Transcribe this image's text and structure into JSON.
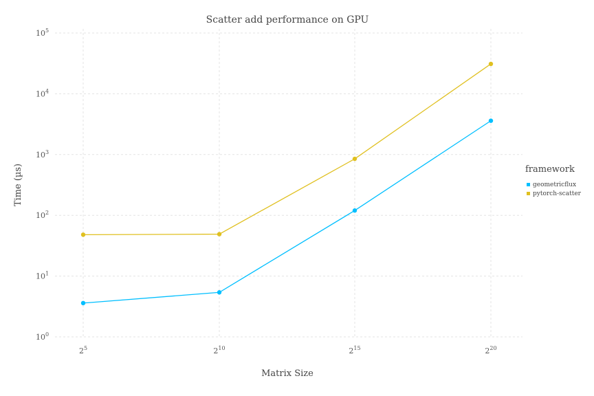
{
  "chart_data": {
    "type": "line",
    "title": "Scatter add performance on GPU",
    "xlabel": "Matrix Size",
    "ylabel": "Time (µs)",
    "x_scale": "log2",
    "y_scale": "log10",
    "x": [
      32,
      1024,
      32768,
      1048576
    ],
    "x_ticks": [
      {
        "base": "2",
        "exp": "5"
      },
      {
        "base": "2",
        "exp": "10"
      },
      {
        "base": "2",
        "exp": "15"
      },
      {
        "base": "2",
        "exp": "20"
      }
    ],
    "y_ticks": [
      {
        "base": "10",
        "exp": "0"
      },
      {
        "base": "10",
        "exp": "1"
      },
      {
        "base": "10",
        "exp": "2"
      },
      {
        "base": "10",
        "exp": "3"
      },
      {
        "base": "10",
        "exp": "4"
      },
      {
        "base": "10",
        "exp": "5"
      }
    ],
    "ylim": [
      1,
      100000
    ],
    "grid": true,
    "legend": {
      "title": "framework",
      "position": "right"
    },
    "series": [
      {
        "name": "geometricflux",
        "color": "#00bfff",
        "values": [
          3.6,
          5.4,
          120,
          3600
        ]
      },
      {
        "name": "pytorch-scatter",
        "color": "#e0c020",
        "values": [
          48,
          49,
          850,
          31000
        ]
      }
    ]
  }
}
